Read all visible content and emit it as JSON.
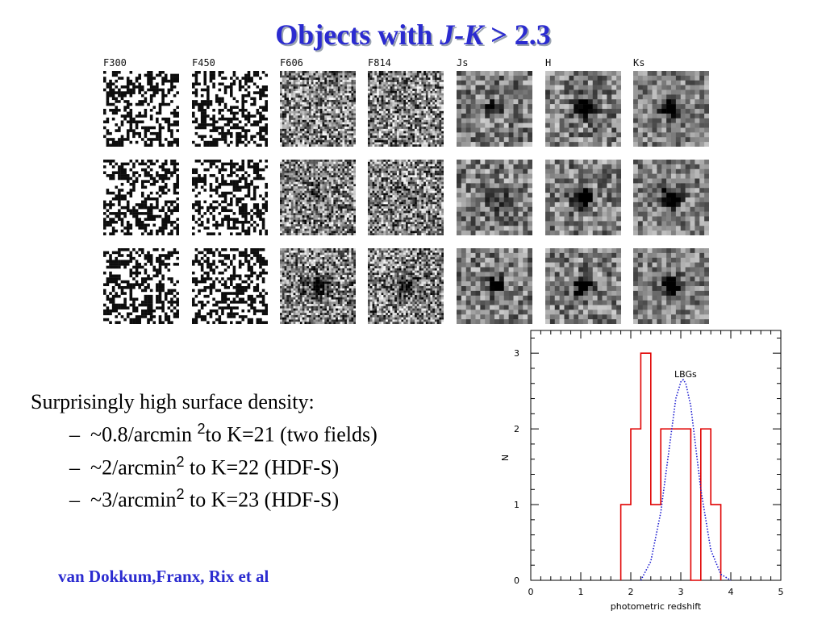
{
  "slide": {
    "title_prefix": "Objects with ",
    "title_italic": "J-K",
    "title_suffix": " > 2.3"
  },
  "figure": {
    "bands": [
      "F300",
      "F450",
      "F606",
      "F814",
      "Js",
      "H",
      "Ks"
    ],
    "rows": 3
  },
  "bullets": {
    "lead": "Surprisingly high surface density:",
    "items": [
      {
        "dash": "–",
        "before": "~0.8/arcmin ",
        "sup": "2",
        "after": "to K=21  (two fields)"
      },
      {
        "dash": "–",
        "before": "~2/arcmin",
        "sup": "2",
        "after": " to K=22  (HDF-S)"
      },
      {
        "dash": "–",
        "before": "~3/arcmin",
        "sup": "2",
        "after": " to K=23  (HDF-S)"
      }
    ]
  },
  "credit": "van Dokkum,Franx, Rix et al",
  "colors": {
    "title": "#2b2bd0",
    "histogram": "#e00000",
    "lbg_curve": "#1a1ad0"
  },
  "chart_data": {
    "type": "histogram",
    "xlabel": "photometric redshift",
    "ylabel": "N",
    "xlim": [
      0,
      5
    ],
    "ylim": [
      0,
      3.3
    ],
    "xticks": [
      0,
      1,
      2,
      3,
      4,
      5
    ],
    "yticks": [
      0,
      1,
      2,
      3
    ],
    "series": [
      {
        "bin_edges": [
          1.8,
          2.0,
          2.2,
          2.4,
          2.6,
          2.8,
          3.0,
          3.2,
          3.4,
          3.6,
          3.8
        ],
        "counts": [
          1,
          2,
          3,
          1,
          2,
          2,
          2,
          0,
          2,
          1
        ]
      },
      {
        "name": "LBGs",
        "style": "dotted",
        "x": [
          2.2,
          2.4,
          2.6,
          2.8,
          2.9,
          3.0,
          3.05,
          3.1,
          3.2,
          3.4,
          3.6,
          3.8,
          4.0
        ],
        "y": [
          0.0,
          0.25,
          0.9,
          1.9,
          2.4,
          2.62,
          2.65,
          2.6,
          2.3,
          1.2,
          0.4,
          0.08,
          0.0
        ]
      }
    ],
    "grid": false
  }
}
